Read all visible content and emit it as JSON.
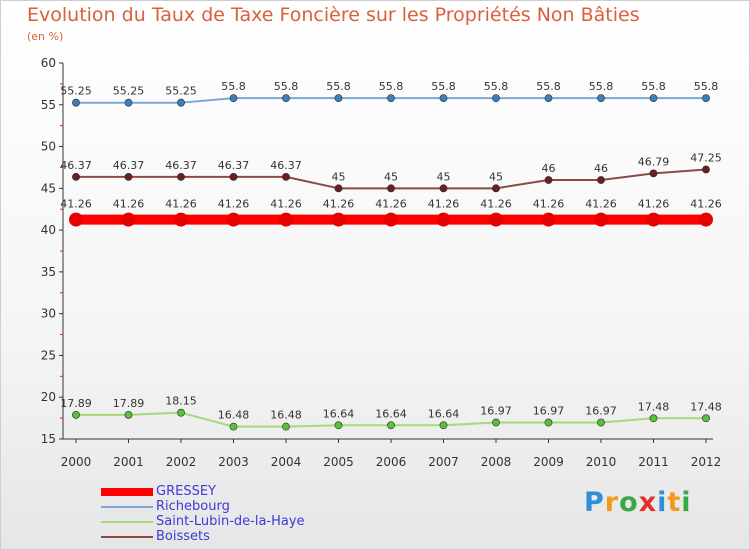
{
  "chart_data": {
    "type": "line",
    "title": "Evolution du Taux de Taxe Foncière sur les Propriétés Non Bâties",
    "subtitle": "(en %)",
    "xlabel": "",
    "ylabel": "",
    "ylim": [
      15,
      60
    ],
    "yticks": [
      15,
      20,
      25,
      30,
      35,
      40,
      45,
      50,
      55,
      60
    ],
    "categories": [
      "2000",
      "2001",
      "2002",
      "2003",
      "2004",
      "2005",
      "2006",
      "2007",
      "2008",
      "2009",
      "2010",
      "2011",
      "2012"
    ],
    "grid": false,
    "legend_position": "bottom-left",
    "series": [
      {
        "name": "GRESSEY",
        "color": "#ff0000",
        "marker_color": "#e60000",
        "emphasis": "thick",
        "values": [
          41.26,
          41.26,
          41.26,
          41.26,
          41.26,
          41.26,
          41.26,
          41.26,
          41.26,
          41.26,
          41.26,
          41.26,
          41.26
        ],
        "labels": [
          "41.26",
          "41.26",
          "41.26",
          "41.26",
          "41.26",
          "41.26",
          "41.26",
          "41.26",
          "41.26",
          "41.26",
          "41.26",
          "41.26",
          "41.26"
        ]
      },
      {
        "name": "Richebourg",
        "color": "#7ba7d4",
        "marker_color": "#3c7fbf",
        "emphasis": "normal",
        "values": [
          55.25,
          55.25,
          55.25,
          55.8,
          55.8,
          55.8,
          55.8,
          55.8,
          55.8,
          55.8,
          55.8,
          55.8,
          55.8
        ],
        "labels": [
          "55.25",
          "55.25",
          "55.25",
          "55.8",
          "55.8",
          "55.8",
          "55.8",
          "55.8",
          "55.8",
          "55.8",
          "55.8",
          "55.8",
          "55.8"
        ]
      },
      {
        "name": "Saint-Lubin-de-la-Haye",
        "color": "#a6d97a",
        "marker_color": "#5cbf3c",
        "emphasis": "normal",
        "values": [
          17.89,
          17.89,
          18.15,
          16.48,
          16.48,
          16.64,
          16.64,
          16.64,
          16.97,
          16.97,
          16.97,
          17.48,
          17.48
        ],
        "labels": [
          "17.89",
          "17.89",
          "18.15",
          "16.48",
          "16.48",
          "16.64",
          "16.64",
          "16.64",
          "16.97",
          "16.97",
          "16.97",
          "17.48",
          "17.48"
        ]
      },
      {
        "name": "Boissets",
        "color": "#8a4a4a",
        "marker_color": "#6b1f1f",
        "emphasis": "normal",
        "values": [
          46.37,
          46.37,
          46.37,
          46.37,
          46.37,
          45,
          45,
          45,
          45,
          46,
          46,
          46.79,
          47.25
        ],
        "labels": [
          "46.37",
          "46.37",
          "46.37",
          "46.37",
          "46.37",
          "45",
          "45",
          "45",
          "45",
          "46",
          "46",
          "46.79",
          "47.25"
        ]
      }
    ]
  },
  "brand": {
    "letters": [
      "P",
      "r",
      "o",
      "x",
      "i",
      "t",
      "i"
    ],
    "colors": [
      "#2f8fd6",
      "#f29a1f",
      "#39a845",
      "#e0322b",
      "#2f8fd6",
      "#f29a1f",
      "#39a845"
    ]
  }
}
